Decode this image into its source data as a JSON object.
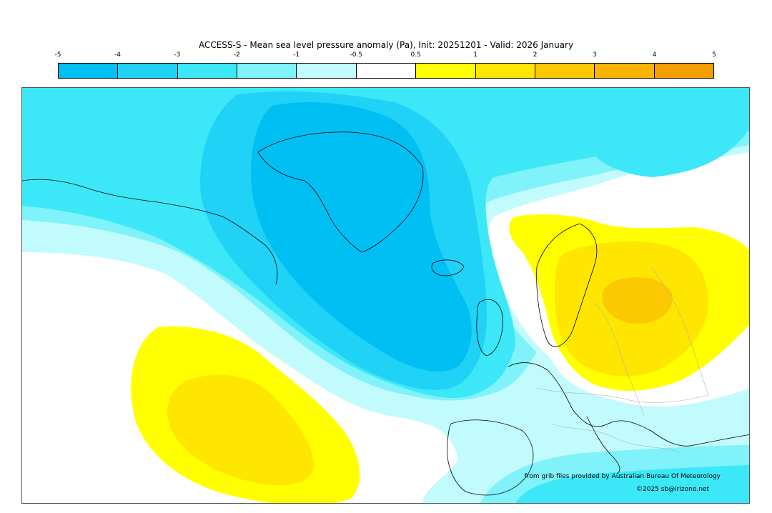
{
  "title": "ACCESS-S - Mean sea level pressure anomaly (Pa), Init: 20251201 - Valid: 2026 January",
  "colorbar": {
    "ticks": [
      "-5",
      "-4",
      "-3",
      "-2",
      "-1",
      "-0.5",
      "0.5",
      "1",
      "2",
      "3",
      "4",
      "5"
    ],
    "colors": [
      "#00bff3",
      "#1fd2f6",
      "#3ce8f8",
      "#7ff2fa",
      "#c2fbfd",
      "#ffffff",
      "#ffff00",
      "#ffe600",
      "#fcc800",
      "#f8b400",
      "#f59e00"
    ]
  },
  "map_colors": {
    "lightest_blue": "#c2fbfd",
    "light_blue": "#7ff2fa",
    "mid_blue": "#3ce8f8",
    "blue": "#1fd2f6",
    "deep_blue": "#00bff3",
    "yellow": "#ffff00",
    "gold": "#ffe600",
    "orange": "#fcc800",
    "coastline": "#000000",
    "borders": "#b0b0b0"
  },
  "credits": {
    "source": "from grib files provided by Australian Bureau Of Meteorology",
    "copyright": "©2025 sb@irizone.net"
  }
}
